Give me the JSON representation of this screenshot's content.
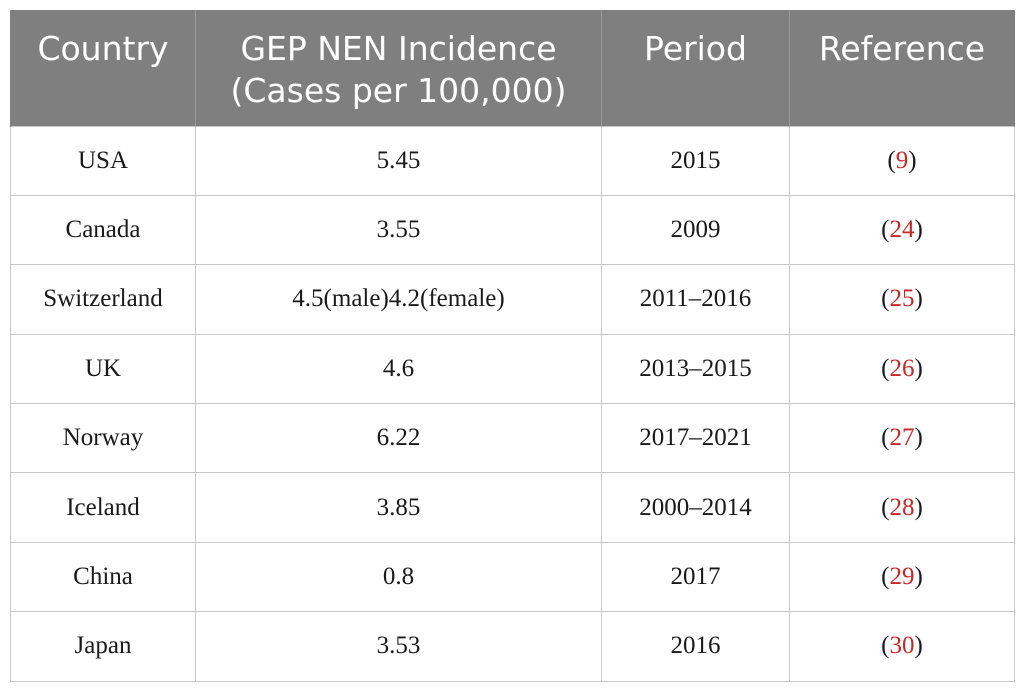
{
  "table": {
    "headers": {
      "country": "Country",
      "incidence_line1": "GEP NEN Incidence",
      "incidence_line2": "(Cases per 100,000)",
      "period": "Period",
      "reference": "Reference"
    },
    "rows": [
      {
        "country": "USA",
        "incidence": "5.45",
        "period": "2015",
        "ref": "9"
      },
      {
        "country": "Canada",
        "incidence": "3.55",
        "period": "2009",
        "ref": "24"
      },
      {
        "country": "Switzerland",
        "incidence": "4.5(male)4.2(female)",
        "period": "2011–2016",
        "ref": "25"
      },
      {
        "country": "UK",
        "incidence": "4.6",
        "period": "2013–2015",
        "ref": "26"
      },
      {
        "country": "Norway",
        "incidence": "6.22",
        "period": "2017–2021",
        "ref": "27"
      },
      {
        "country": "Iceland",
        "incidence": "3.85",
        "period": "2000–2014",
        "ref": "28"
      },
      {
        "country": "China",
        "incidence": "0.8",
        "period": "2017",
        "ref": "29"
      },
      {
        "country": "Japan",
        "incidence": "3.53",
        "period": "2016",
        "ref": "30"
      }
    ]
  },
  "colors": {
    "header_bg": "#7f7f7f",
    "header_text": "#ffffff",
    "reference_link": "#c62828",
    "border": "#c8c8c8"
  }
}
